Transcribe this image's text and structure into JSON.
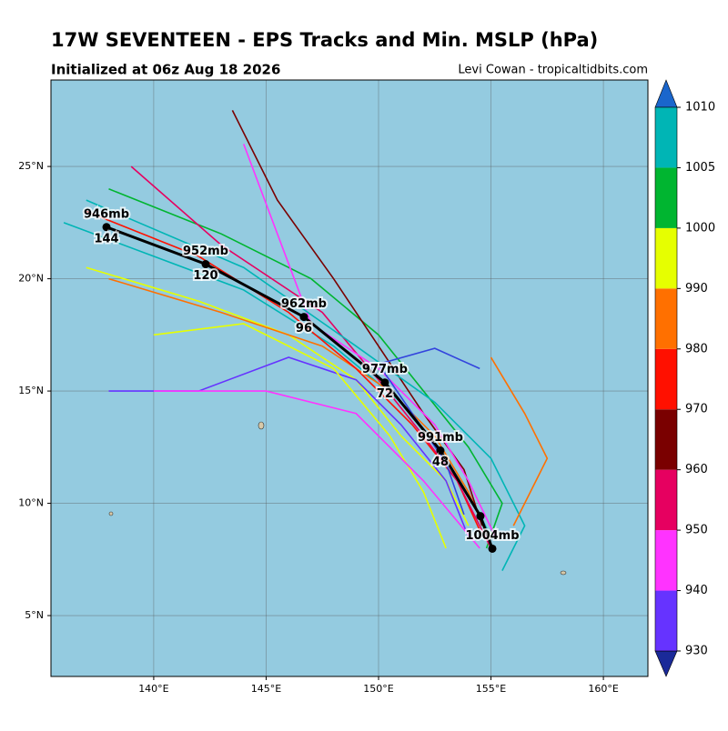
{
  "header": {
    "title": "17W SEVENTEEN - EPS Tracks and Min. MSLP (hPa)",
    "subtitle": "Initialized at 06z Aug 18 2026",
    "credit": "Levi Cowan - tropicaltidbits.com"
  },
  "map": {
    "xlim": [
      135.43,
      161.98
    ],
    "ylim": [
      2.29,
      28.85
    ],
    "xticks": [
      {
        "value": 140,
        "label": "140°E"
      },
      {
        "value": 145,
        "label": "145°E"
      },
      {
        "value": 150,
        "label": "150°E"
      },
      {
        "value": 155,
        "label": "155°E"
      },
      {
        "value": 160,
        "label": "160°E"
      }
    ],
    "yticks": [
      {
        "value": 5,
        "label": "5°N"
      },
      {
        "value": 10,
        "label": "10°N"
      },
      {
        "value": 15,
        "label": "15°N"
      },
      {
        "value": 20,
        "label": "20°N"
      },
      {
        "value": 25,
        "label": "25°N"
      }
    ],
    "grid": true,
    "ensemble_tracks": [
      {
        "color": "#00b5b5",
        "lon": [
          155,
          154.5,
          153,
          151,
          148,
          144,
          140,
          136
        ],
        "lat": [
          8.5,
          9.5,
          12,
          14.5,
          17,
          19.5,
          21,
          22.5
        ]
      },
      {
        "color": "#00b530",
        "lon": [
          154.8,
          155.5,
          154,
          152,
          150,
          147,
          143,
          138
        ],
        "lat": [
          8,
          10,
          12.5,
          15,
          17.5,
          20,
          22,
          24
        ]
      },
      {
        "color": "#e6ff00",
        "lon": [
          154,
          153,
          151,
          149,
          146,
          142,
          137
        ],
        "lat": [
          9,
          11,
          13,
          15.5,
          17.5,
          19,
          20.5
        ]
      },
      {
        "color": "#ff7000",
        "lon": [
          155,
          154,
          152.5,
          150.5,
          147.5,
          143,
          138
        ],
        "lat": [
          8.2,
          10.5,
          13,
          15,
          17,
          18.5,
          20
        ]
      },
      {
        "color": "#ff1000",
        "lon": [
          154.5,
          153.5,
          151.5,
          149,
          146,
          142,
          137
        ],
        "lat": [
          8.8,
          11,
          13.5,
          16,
          18.5,
          21,
          23
        ]
      },
      {
        "color": "#7a0000",
        "lon": [
          154.6,
          153.8,
          152,
          150,
          148,
          145.5,
          143.5
        ],
        "lat": [
          9,
          11.5,
          14,
          17,
          20,
          23.5,
          27.5
        ]
      },
      {
        "color": "#e60060",
        "lon": [
          155,
          153.5,
          152,
          150,
          147.5,
          143,
          139
        ],
        "lat": [
          8,
          11,
          13,
          15.5,
          18.5,
          21.5,
          25
        ]
      },
      {
        "color": "#ff33ff",
        "lon": [
          155.2,
          154,
          152.5,
          150,
          147,
          145.5,
          144
        ],
        "lat": [
          8.5,
          11,
          13.5,
          16,
          18,
          22,
          26
        ]
      },
      {
        "color": "#6633ff",
        "lon": [
          154,
          153,
          151,
          149,
          146,
          142,
          138
        ],
        "lat": [
          8.5,
          11,
          13.5,
          15.5,
          16.5,
          15,
          15
        ]
      },
      {
        "color": "#3344dd",
        "lon": [
          153.8,
          153,
          151.5,
          150,
          152.5,
          154.5
        ],
        "lat": [
          9.5,
          11.8,
          14,
          16.2,
          16.9,
          16
        ]
      },
      {
        "color": "#00b5b5",
        "lon": [
          155.5,
          156.5,
          155,
          152.5,
          149,
          144,
          137
        ],
        "lat": [
          7,
          9,
          12,
          14.5,
          17,
          20.5,
          23.5
        ]
      },
      {
        "color": "#e6ff00",
        "lon": [
          153,
          152,
          150.5,
          148,
          144,
          140
        ],
        "lat": [
          8,
          10.5,
          13,
          16,
          18,
          17.5
        ]
      },
      {
        "color": "#ff7000",
        "lon": [
          156,
          157.5,
          156.5,
          155
        ],
        "lat": [
          9,
          12,
          14,
          16.5
        ]
      },
      {
        "color": "#ff33ff",
        "lon": [
          154.5,
          152,
          149,
          145,
          140
        ],
        "lat": [
          8,
          11,
          14,
          15,
          15
        ]
      }
    ],
    "mean_track": {
      "lon": [
        155.06,
        154.53,
        152.75,
        150.28,
        146.68,
        142.31,
        137.9
      ],
      "lat": [
        7.98,
        9.43,
        12.35,
        15.38,
        18.3,
        20.65,
        22.3
      ],
      "pressure_labels": [
        "1004mb",
        null,
        "991mb",
        "977mb",
        "962mb",
        "952mb",
        "946mb"
      ],
      "hour_labels": [
        null,
        null,
        48,
        72,
        96,
        120,
        144
      ]
    },
    "colorbar": {
      "levels": [
        930,
        940,
        950,
        960,
        970,
        980,
        990,
        1000,
        1005,
        1010
      ],
      "colors": [
        "#6633ff",
        "#ff33ff",
        "#e60060",
        "#7a0000",
        "#ff1000",
        "#ff7000",
        "#e6ff00",
        "#00b530",
        "#00b5b5"
      ],
      "under_color": "#1a2a99",
      "over_color": "#1a66cc"
    }
  }
}
